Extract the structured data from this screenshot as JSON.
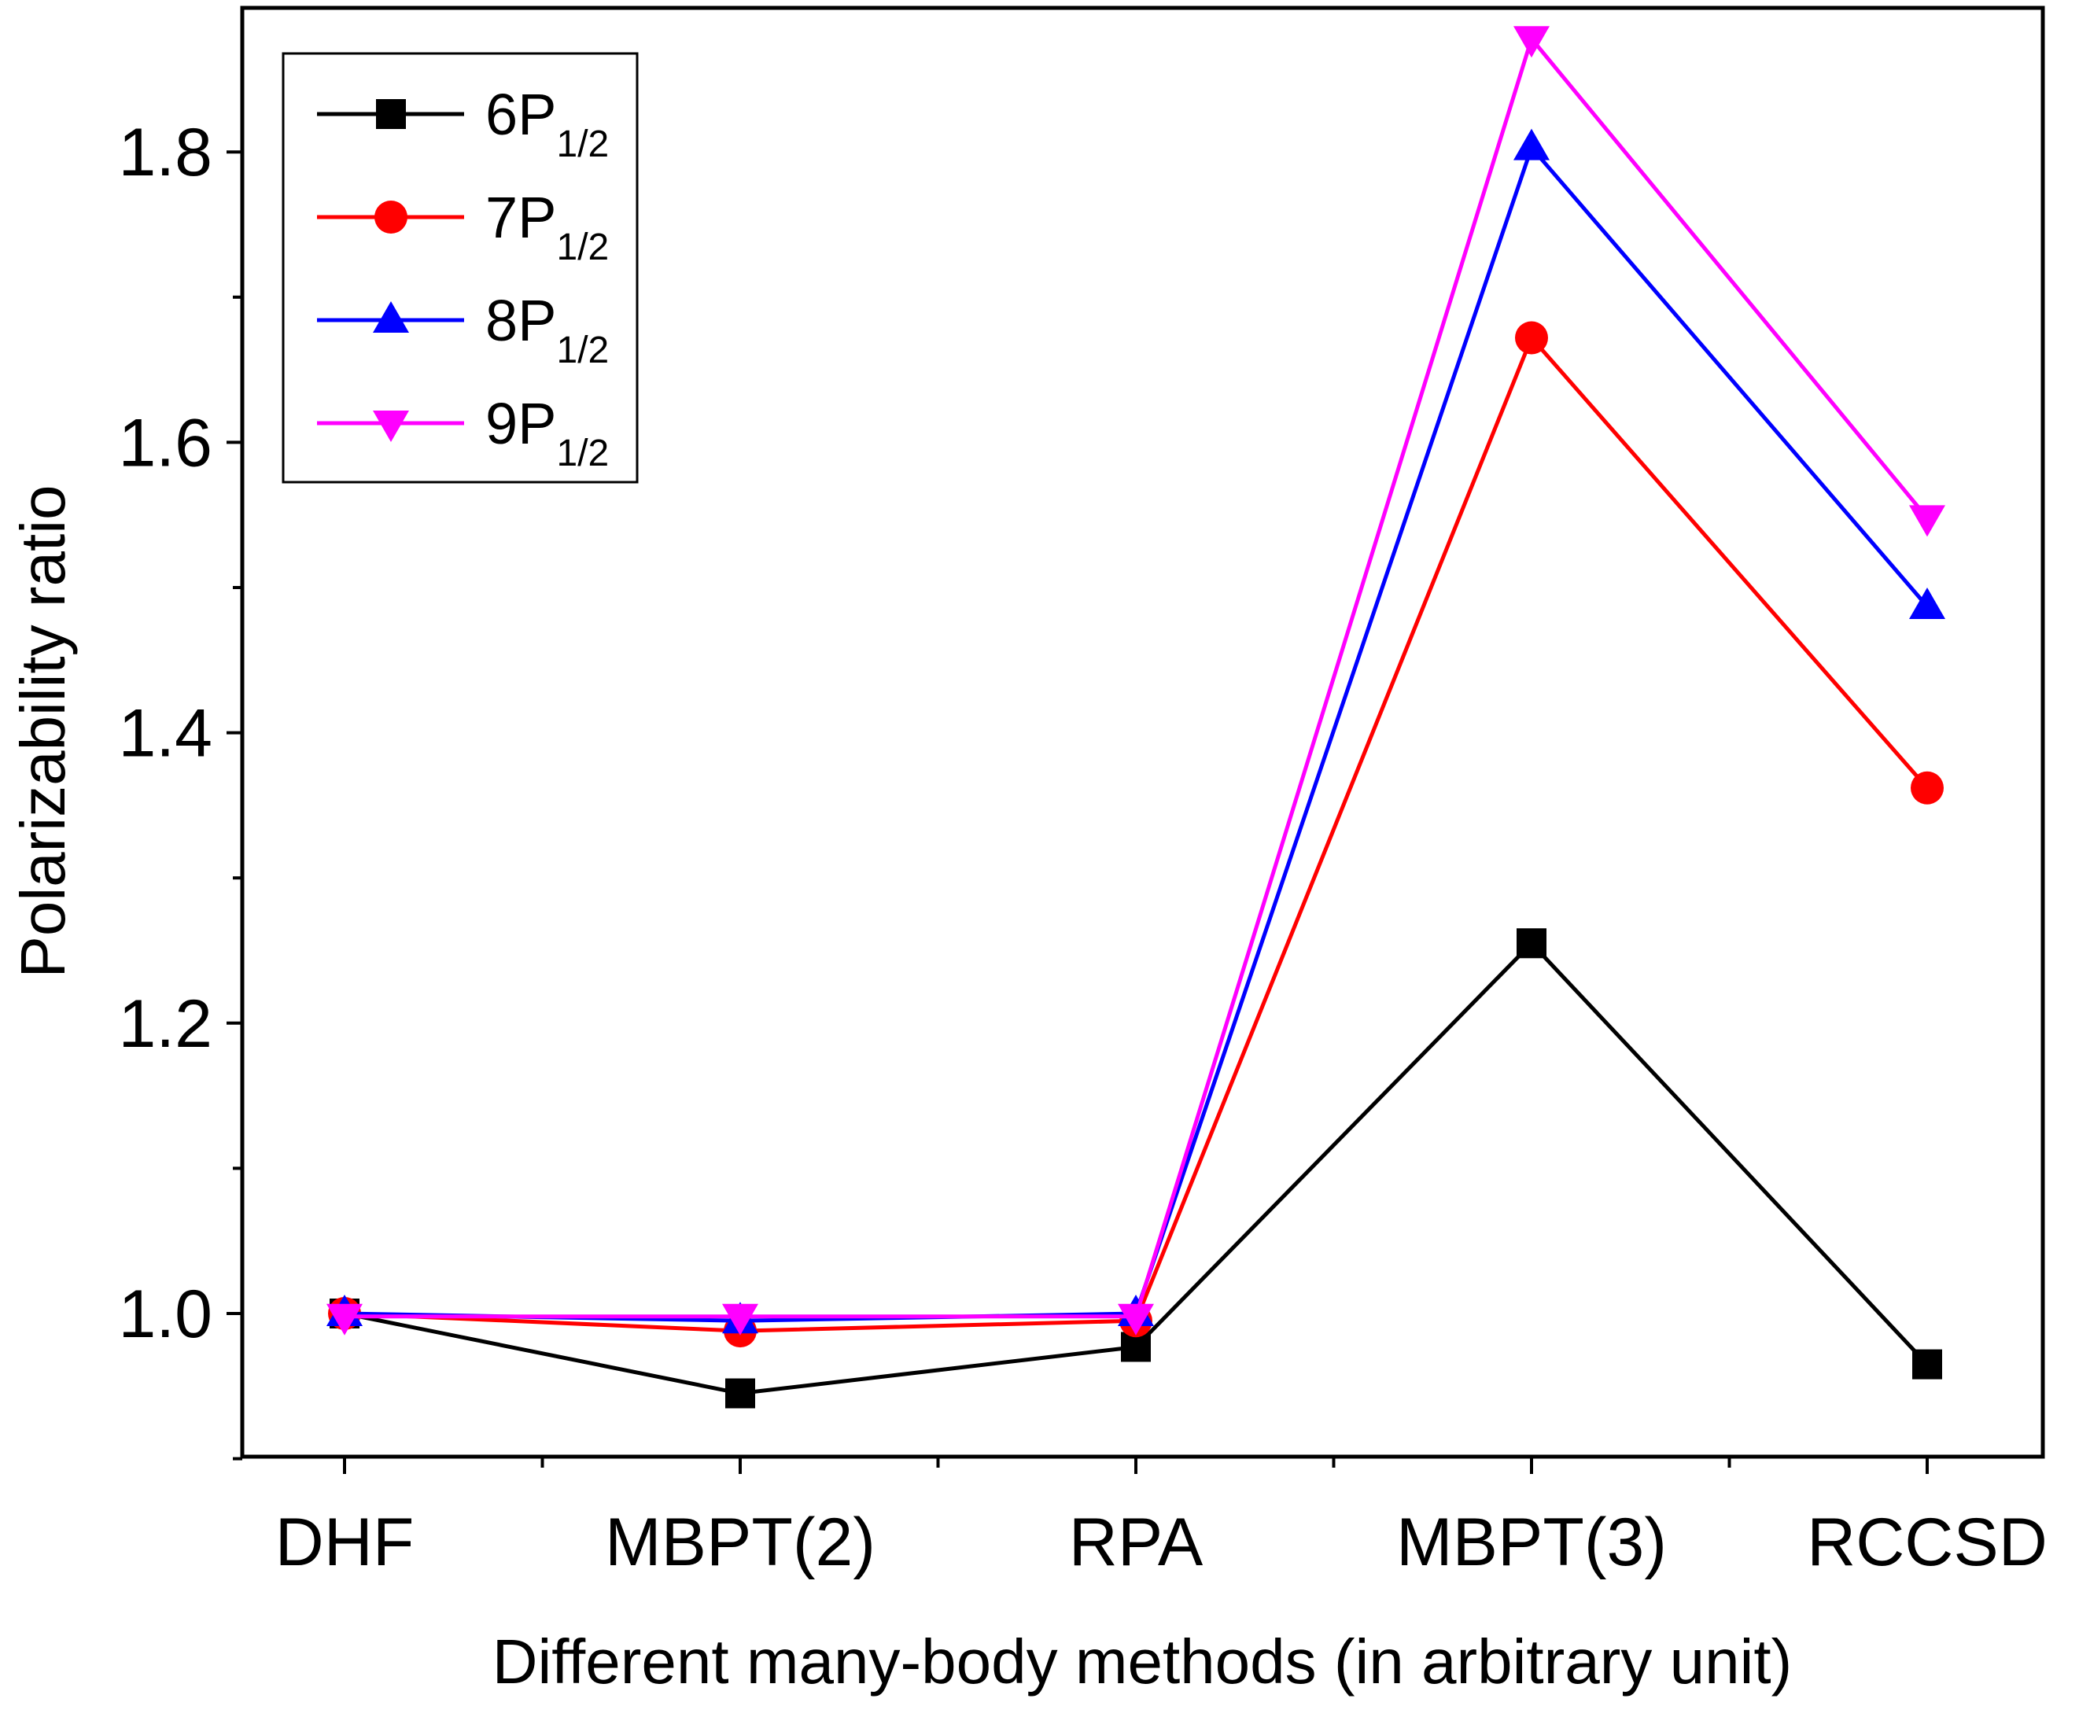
{
  "chart_data": {
    "type": "line",
    "title": "",
    "xlabel": "Different many-body methods (in arbitrary unit)",
    "ylabel": "Polarizability ratio",
    "categories": [
      "DHF",
      "MBPT(2)",
      "RPA",
      "MBPT(3)",
      "RCCSD"
    ],
    "ylim": [
      0.9,
      1.9
    ],
    "yticks": [
      "1.0",
      "1.2",
      "1.4",
      "1.6",
      "1.8"
    ],
    "ytick_values": [
      1.0,
      1.2,
      1.4,
      1.6,
      1.8
    ],
    "legend_position": "top-left",
    "grid": false,
    "series": [
      {
        "name": "6P",
        "sub": "1/2",
        "color": "#000000",
        "marker": "square",
        "values": [
          1.0,
          0.945,
          0.977,
          1.255,
          0.965
        ]
      },
      {
        "name": "7P",
        "sub": "1/2",
        "color": "#ff0000",
        "marker": "circle",
        "values": [
          1.0,
          0.988,
          0.995,
          1.672,
          1.362
        ]
      },
      {
        "name": "8P",
        "sub": "1/2",
        "color": "#0000ff",
        "marker": "triangle-up",
        "values": [
          1.0,
          0.995,
          1.0,
          1.803,
          1.487
        ]
      },
      {
        "name": "9P",
        "sub": "1/2",
        "color": "#ff00ff",
        "marker": "triangle-down",
        "values": [
          0.998,
          0.998,
          0.998,
          1.878,
          1.548
        ]
      }
    ]
  }
}
